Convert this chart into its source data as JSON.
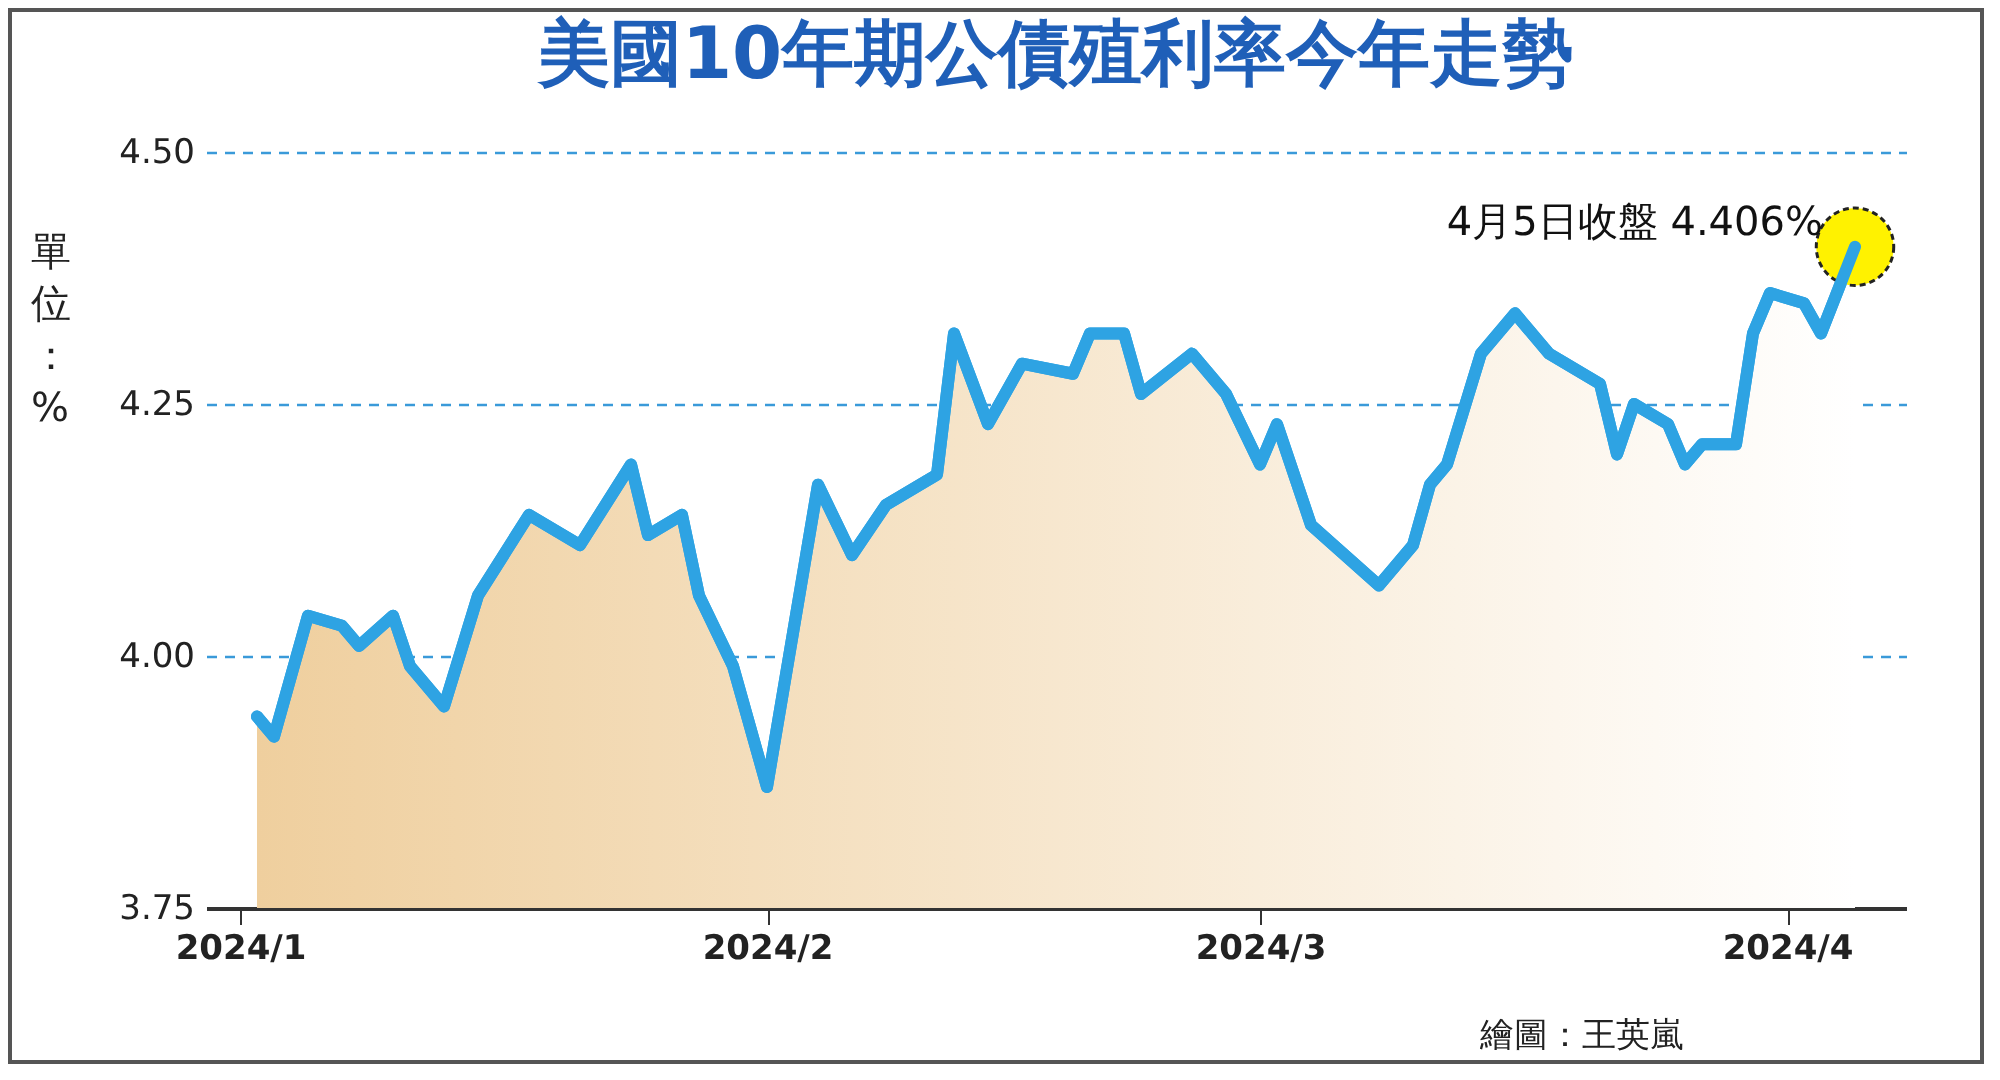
{
  "chart_data": {
    "type": "area",
    "title": "美國10年期公債殖利率今年走勢",
    "ylabel": "單位：%",
    "x": [
      "2024-01-02",
      "2024-01-03",
      "2024-01-05",
      "2024-01-07",
      "2024-01-08",
      "2024-01-10",
      "2024-01-11",
      "2024-01-13",
      "2024-01-15",
      "2024-01-18",
      "2024-01-21",
      "2024-01-24",
      "2024-01-25",
      "2024-01-27",
      "2024-01-28",
      "2024-01-30",
      "2024-02-01",
      "2024-02-04",
      "2024-02-06",
      "2024-02-08",
      "2024-02-11",
      "2024-02-12",
      "2024-02-14",
      "2024-02-16",
      "2024-02-19",
      "2024-02-20",
      "2024-02-22",
      "2024-02-23",
      "2024-02-26",
      "2024-02-28",
      "2024-03-01",
      "2024-03-02",
      "2024-03-04",
      "2024-03-06",
      "2024-03-08",
      "2024-03-10",
      "2024-03-11",
      "2024-03-12",
      "2024-03-14",
      "2024-03-16",
      "2024-03-18",
      "2024-03-21",
      "2024-03-22",
      "2024-03-23",
      "2024-03-25",
      "2024-03-26",
      "2024-03-27",
      "2024-03-29",
      "2024-03-30",
      "2024-03-31",
      "2024-04-02",
      "2024-04-03",
      "2024-04-05"
    ],
    "series": [
      {
        "color": "#2ea3e3",
        "values": [
          3.94,
          3.92,
          4.04,
          4.03,
          4.01,
          4.04,
          3.99,
          3.95,
          4.06,
          4.14,
          4.11,
          4.19,
          4.12,
          4.14,
          4.06,
          3.99,
          3.87,
          4.17,
          4.1,
          4.15,
          4.18,
          4.32,
          4.23,
          4.29,
          4.28,
          4.32,
          4.32,
          4.26,
          4.3,
          4.26,
          4.19,
          4.23,
          4.13,
          4.1,
          4.07,
          4.11,
          4.17,
          4.19,
          4.3,
          4.34,
          4.3,
          4.27,
          4.2,
          4.25,
          4.23,
          4.19,
          4.21,
          4.21,
          4.32,
          4.36,
          4.35,
          4.32,
          4.406
        ]
      }
    ],
    "xlim": [
      "2023-12-30",
      "2024-04-08"
    ],
    "xticks": [
      {
        "value": "2024-01-01",
        "label": "2024/1"
      },
      {
        "value": "2024-02-01",
        "label": "2024/2"
      },
      {
        "value": "2024-03-01",
        "label": "2024/3"
      },
      {
        "value": "2024-04-01",
        "label": "2024/4"
      }
    ],
    "ylim": [
      3.75,
      4.5
    ],
    "yticks": [
      {
        "value": 3.75,
        "label": "3.75"
      },
      {
        "value": 4,
        "label": "4.00"
      },
      {
        "value": 4.25,
        "label": "4.25"
      },
      {
        "value": 4.5,
        "label": "4.50"
      }
    ],
    "grid": "y",
    "annotations": [
      {
        "text": "4月5日收盤 4.406%",
        "x": "2024-04-05",
        "y": 4.406
      },
      "繪圖：王英嵐"
    ]
  }
}
